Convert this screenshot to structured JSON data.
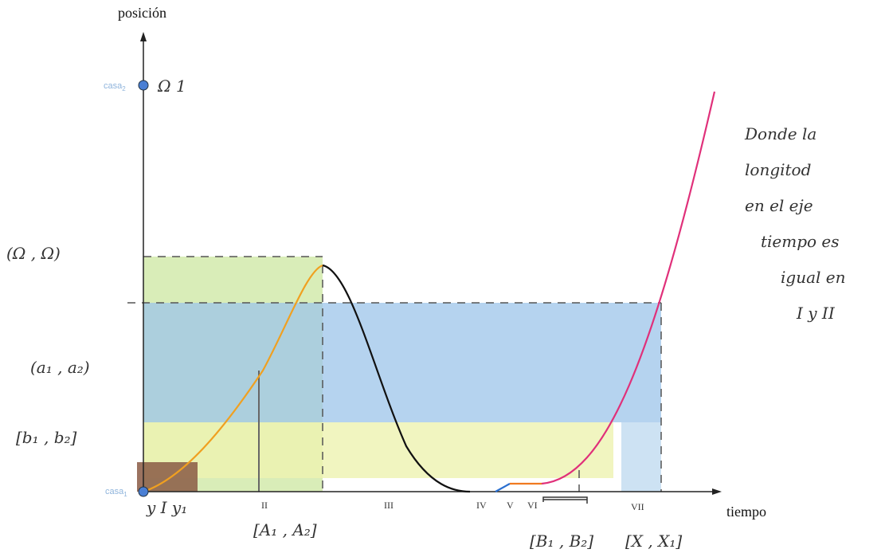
{
  "axes": {
    "y_label": "posición",
    "x_label": "tiempo"
  },
  "points": [
    {
      "label": "casa",
      "sub": "2",
      "mark": "Ω 1"
    },
    {
      "label": "casa",
      "sub": "1"
    }
  ],
  "y_labels": [
    "(Ω , Ω)",
    "(a₁ , a₂)",
    "[b₁ , b₂]"
  ],
  "x_labels": [
    "y I y₁",
    "II",
    "III",
    "IV",
    "V",
    "VI",
    "VII"
  ],
  "intervals": [
    "[A₁ , A₂]",
    "[B₁ , B₂]",
    "[X , X₁]"
  ],
  "note": [
    "Donde la",
    "longitod",
    "en el eje",
    "tiempo es",
    "igual en",
    "I y II"
  ]
}
